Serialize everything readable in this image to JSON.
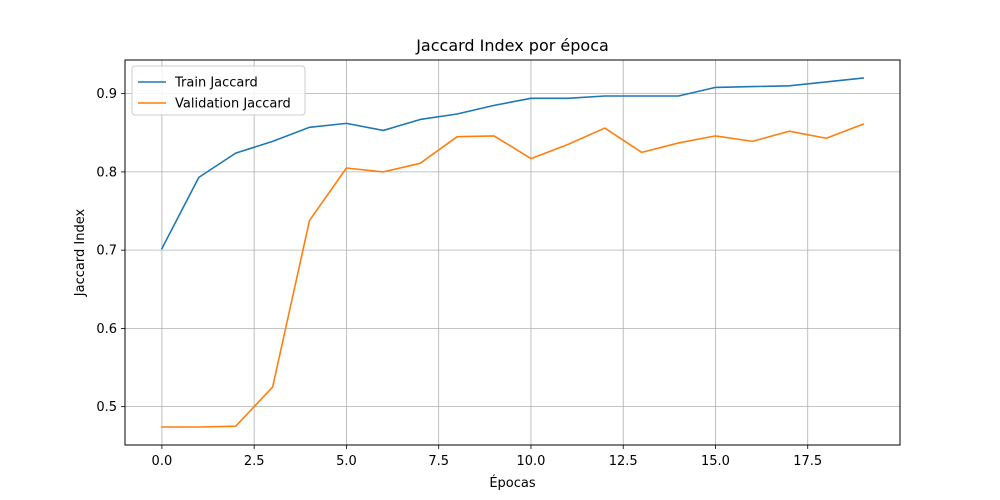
{
  "chart_data": {
    "type": "line",
    "title": "Jaccard Index por época",
    "xlabel": "Épocas",
    "ylabel": "Jaccard Index",
    "xlim": [
      -1.0,
      20.0
    ],
    "ylim": [
      0.451,
      0.943
    ],
    "xticks": [
      0.0,
      2.5,
      5.0,
      7.5,
      10.0,
      12.5,
      15.0,
      17.5
    ],
    "xtick_labels": [
      "0.0",
      "2.5",
      "5.0",
      "7.5",
      "10.0",
      "12.5",
      "15.0",
      "17.5"
    ],
    "yticks": [
      0.5,
      0.6,
      0.7,
      0.8,
      0.9
    ],
    "ytick_labels": [
      "0.5",
      "0.6",
      "0.7",
      "0.8",
      "0.9"
    ],
    "grid": true,
    "legend_position": "upper left",
    "x": [
      0,
      1,
      2,
      3,
      4,
      5,
      6,
      7,
      8,
      9,
      10,
      11,
      12,
      13,
      14,
      15,
      16,
      17,
      18,
      19
    ],
    "series": [
      {
        "name": "Train Jaccard",
        "color": "#1f77b4",
        "values": [
          0.702,
          0.793,
          0.824,
          0.839,
          0.857,
          0.862,
          0.853,
          0.867,
          0.874,
          0.885,
          0.894,
          0.894,
          0.897,
          0.897,
          0.897,
          0.908,
          0.909,
          0.91,
          0.915,
          0.92
        ]
      },
      {
        "name": "Validation Jaccard",
        "color": "#ff7f0e",
        "values": [
          0.474,
          0.474,
          0.475,
          0.525,
          0.738,
          0.805,
          0.8,
          0.811,
          0.845,
          0.846,
          0.817,
          0.835,
          0.856,
          0.825,
          0.837,
          0.846,
          0.839,
          0.852,
          0.843,
          0.861
        ]
      }
    ]
  }
}
